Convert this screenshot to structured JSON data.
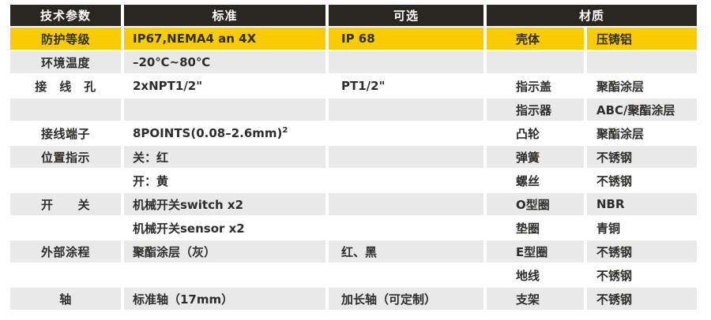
{
  "colors": {
    "header_bg": "#2a2723",
    "header_text": "#ffffff",
    "highlight_row_bg": "#f9cb00",
    "alt_row_bg": "#e9e9e9",
    "row_bg": "#ffffff",
    "text": "#2f2d2b"
  },
  "table": {
    "headers": [
      {
        "label": "技术参数"
      },
      {
        "label": "标准"
      },
      {
        "label": "可选"
      },
      {
        "label": "材质"
      }
    ],
    "rows": [
      {
        "param": "防护等级",
        "standard": "IP67,NEMA4 an 4X",
        "optional": "IP 68",
        "part": "壳体",
        "material": "压铸铝",
        "highlight": true
      },
      {
        "param": "环境温度",
        "standard": "–20℃~80℃",
        "optional": "",
        "part": "",
        "material": ""
      },
      {
        "param": "接　线　孔",
        "standard": "2xNPT1/2\"",
        "optional": "PT1/2\"",
        "part": "指示盖",
        "material": "聚酯涂层"
      },
      {
        "param": "",
        "standard": "",
        "optional": "",
        "part": "指示器",
        "material": "ABC/聚酯涂层"
      },
      {
        "param": "接线端子",
        "standard": "8POINTS(0.08–2.6mm)",
        "standard_sup": "2",
        "optional": "",
        "part": "凸轮",
        "material": "聚酯涂层"
      },
      {
        "param": "位置指示",
        "standard": "关：红",
        "optional": "",
        "part": "弹簧",
        "material": "不锈钢"
      },
      {
        "param": "",
        "standard": "开：黄",
        "optional": "",
        "part": "螺丝",
        "material": "不锈钢"
      },
      {
        "param": "开　　关",
        "standard": "机械开关switch x2",
        "optional": "",
        "part": "O型圈",
        "material": "NBR"
      },
      {
        "param": "",
        "standard": "机械开关sensor x2",
        "optional": "",
        "part": "垫圈",
        "material": "青铜"
      },
      {
        "param": "外部涂程",
        "standard": "聚酯涂层（灰）",
        "optional": "红、黑",
        "part": "E型圈",
        "material": "不锈钢"
      },
      {
        "param": "",
        "standard": "",
        "optional": "",
        "part": "地线",
        "material": "不锈钢"
      },
      {
        "param": "轴",
        "standard": "标准轴（17mm）",
        "optional": "加长轴（可定制）",
        "part": "支架",
        "material": "不锈钢"
      }
    ]
  }
}
